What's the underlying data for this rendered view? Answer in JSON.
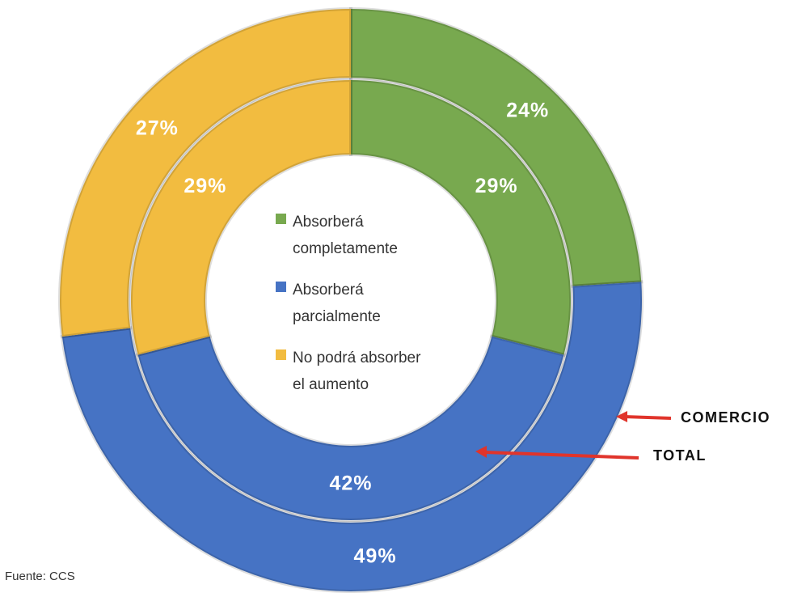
{
  "chart_data": {
    "type": "doughnut",
    "categories": [
      "Absorberá completamente",
      "Absorberá parcialmente",
      "No podrá absorber el aumento"
    ],
    "colors": [
      "#78a94f",
      "#4673c4",
      "#f2bc40"
    ],
    "series": [
      {
        "name": "COMERCIO",
        "values": [
          24,
          49,
          27
        ],
        "value_labels": [
          "24%",
          "49%",
          "27%"
        ]
      },
      {
        "name": "TOTAL",
        "values": [
          29,
          42,
          29
        ],
        "value_labels": [
          "29%",
          "42%",
          "29%"
        ]
      }
    ],
    "source": "Fuente: CCS"
  }
}
